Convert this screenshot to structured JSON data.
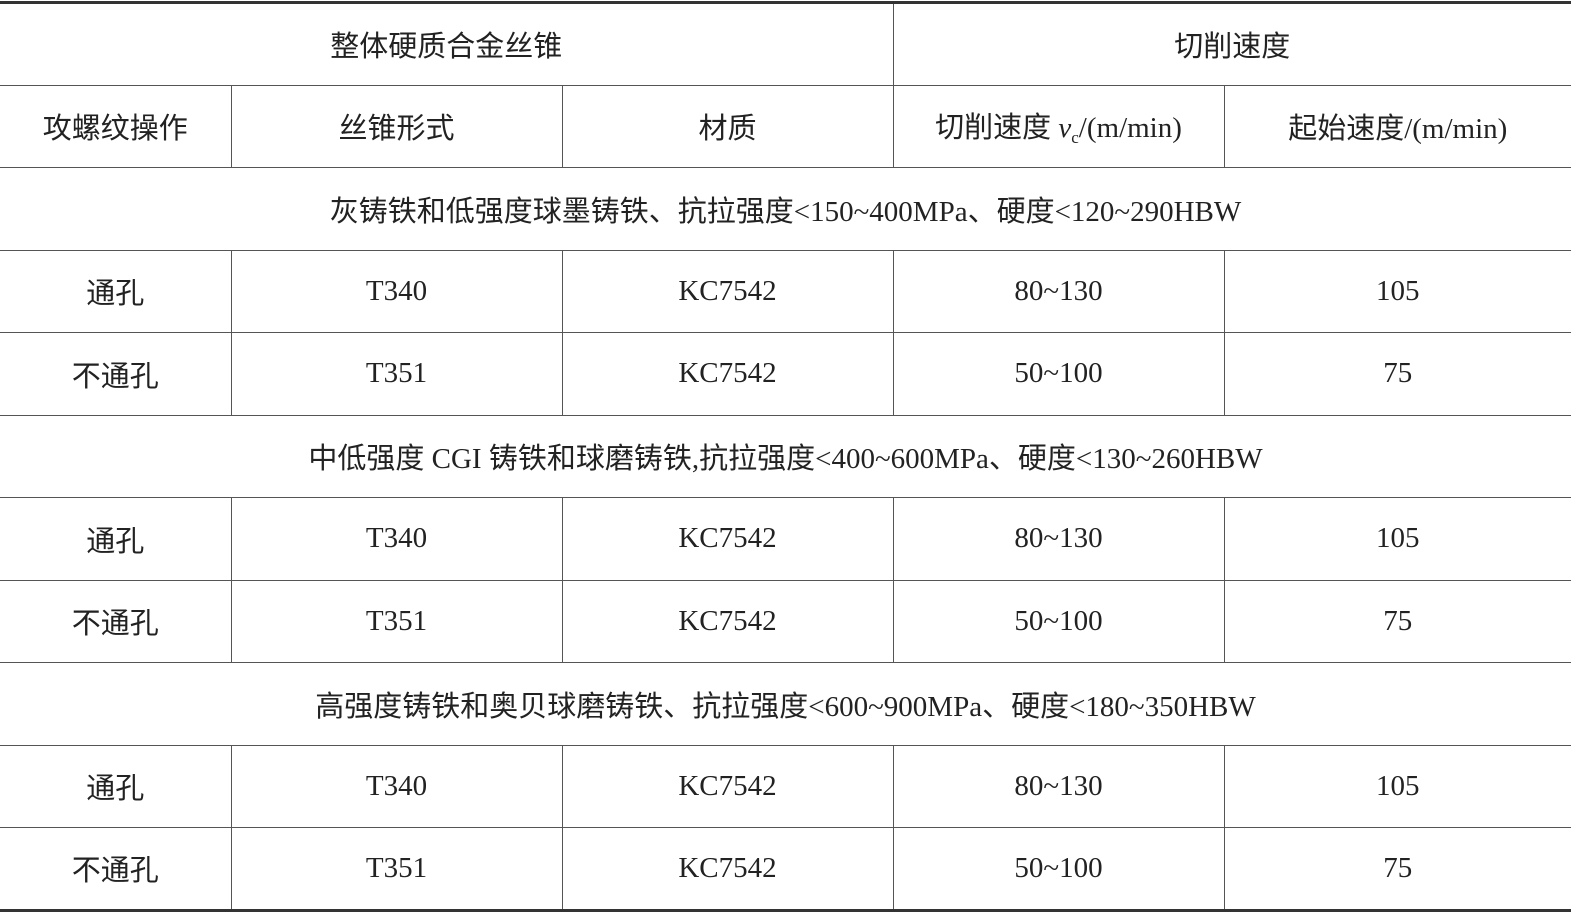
{
  "header": {
    "group_tap": "整体硬质合金丝锥",
    "group_speed": "切削速度",
    "col_operation": "攻螺纹操作",
    "col_tap_form": "丝锥形式",
    "col_material": "材质",
    "col_vc_prefix": "切削速度 ",
    "col_vc_symbol": "v",
    "col_vc_sub": "c",
    "col_vc_unit": "/(m/min)",
    "col_start": "起始速度/(m/min)"
  },
  "sections": [
    {
      "title": "灰铸铁和低强度球墨铸铁、抗拉强度<150~400MPa、硬度<120~290HBW",
      "rows": [
        {
          "operation": "通孔",
          "tap_form": "T340",
          "material": "KC7542",
          "vc": "80~130",
          "start": "105"
        },
        {
          "operation": "不通孔",
          "tap_form": "T351",
          "material": "KC7542",
          "vc": "50~100",
          "start": "75"
        }
      ]
    },
    {
      "title": "中低强度 CGI 铸铁和球磨铸铁,抗拉强度<400~600MPa、硬度<130~260HBW",
      "rows": [
        {
          "operation": "通孔",
          "tap_form": "T340",
          "material": "KC7542",
          "vc": "80~130",
          "start": "105"
        },
        {
          "operation": "不通孔",
          "tap_form": "T351",
          "material": "KC7542",
          "vc": "50~100",
          "start": "75"
        }
      ]
    },
    {
      "title": "高强度铸铁和奥贝球磨铸铁、抗拉强度<600~900MPa、硬度<180~350HBW",
      "rows": [
        {
          "operation": "通孔",
          "tap_form": "T340",
          "material": "KC7542",
          "vc": "80~130",
          "start": "105"
        },
        {
          "operation": "不通孔",
          "tap_form": "T351",
          "material": "KC7542",
          "vc": "50~100",
          "start": "75"
        }
      ]
    }
  ]
}
